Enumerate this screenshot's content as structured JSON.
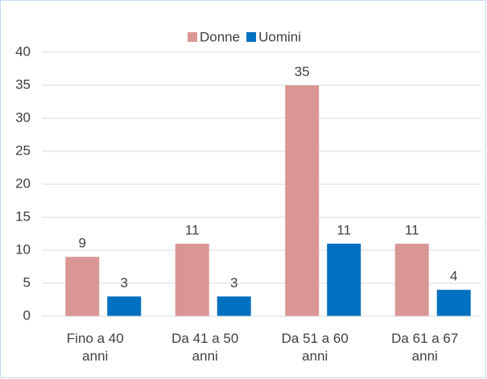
{
  "chart_data": {
    "type": "bar",
    "categories": [
      "Fino a 40 anni",
      "Da 41 a 50 anni",
      "Da 51 a 60 anni",
      "Da 61 a 67 anni"
    ],
    "series": [
      {
        "name": "Donne",
        "color": "#d99694",
        "values": [
          9,
          11,
          35,
          11
        ]
      },
      {
        "name": "Uomini",
        "color": "#0070c0",
        "values": [
          3,
          3,
          11,
          4
        ]
      }
    ],
    "ylim": [
      0,
      40
    ],
    "yticks": [
      0,
      5,
      10,
      15,
      20,
      25,
      30,
      35,
      40
    ],
    "grid": true,
    "legend": "top"
  }
}
